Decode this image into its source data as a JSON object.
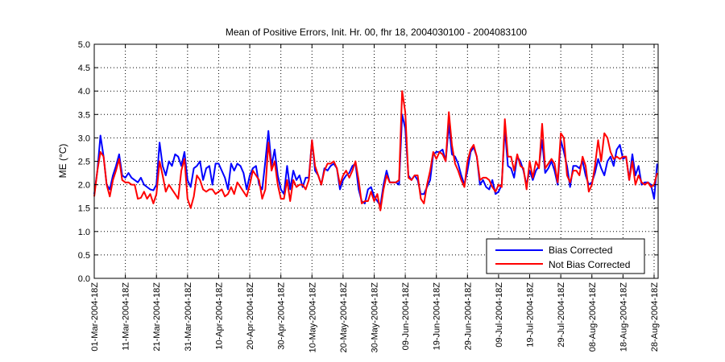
{
  "chart_data": {
    "type": "line",
    "title": "Mean of Positive Errors, Init. Hr. 00, fhr 18, 2004030100 - 2004083100",
    "xlabel": "",
    "ylabel": "ME (°C)",
    "ylim": [
      0,
      5
    ],
    "xlim_days": [
      0,
      181.3
    ],
    "yticks": [
      "0.0",
      "0.5",
      "1.0",
      "1.5",
      "2.0",
      "2.5",
      "3.0",
      "3.5",
      "4.0",
      "4.5",
      "5.0"
    ],
    "ytick_values": [
      0,
      0.5,
      1,
      1.5,
      2,
      2.5,
      3,
      3.5,
      4,
      4.5,
      5
    ],
    "xticks": [
      "01-Mar-2004-18Z",
      "11-Mar-2004-18Z",
      "21-Mar-2004-18Z",
      "31-Mar-2004-18Z",
      "10-Apr-2004-18Z",
      "20-Apr-2004-18Z",
      "30-Apr-2004-18Z",
      "10-May-2004-18Z",
      "20-May-2004-18Z",
      "30-May-2004-18Z",
      "09-Jun-2004-18Z",
      "19-Jun-2004-18Z",
      "29-Jun-2004-18Z",
      "09-Jul-2004-18Z",
      "19-Jul-2004-18Z",
      "29-Jul-2004-18Z",
      "08-Aug-2004-18Z",
      "18-Aug-2004-18Z",
      "28-Aug-2004-18Z"
    ],
    "xtick_days": [
      0,
      10,
      20,
      30,
      40,
      50,
      60,
      70,
      80,
      90,
      100,
      110,
      120,
      130,
      140,
      150,
      160,
      170,
      180
    ],
    "grid": true,
    "legend_position": "bottom-right",
    "series": [
      {
        "name": "Bias Corrected",
        "color": "#0000ff",
        "values": [
          1.8,
          2.3,
          3.05,
          2.6,
          2.0,
          1.9,
          2.2,
          2.4,
          2.65,
          2.2,
          2.15,
          2.25,
          2.15,
          2.1,
          2.05,
          2.15,
          2.0,
          1.95,
          1.9,
          1.88,
          2.0,
          2.9,
          2.4,
          2.2,
          2.5,
          2.4,
          2.65,
          2.6,
          2.4,
          2.7,
          2.1,
          1.95,
          2.35,
          2.4,
          2.5,
          2.1,
          2.35,
          2.4,
          2.0,
          2.45,
          2.45,
          2.3,
          2.15,
          1.9,
          2.45,
          2.3,
          2.45,
          2.4,
          2.25,
          1.9,
          2.2,
          2.35,
          2.4,
          2.0,
          1.9,
          2.5,
          3.15,
          2.4,
          2.75,
          2.2,
          1.9,
          1.8,
          2.4,
          1.9,
          2.3,
          2.1,
          2.2,
          1.95,
          2.15,
          2.15,
          2.95,
          2.3,
          2.2,
          2.0,
          2.35,
          2.3,
          2.4,
          2.45,
          2.35,
          1.9,
          2.1,
          2.2,
          2.25,
          2.4,
          2.45,
          1.9,
          1.65,
          1.6,
          1.9,
          1.95,
          1.75,
          1.65,
          1.55,
          2.0,
          2.3,
          2.05,
          2.05,
          2.05,
          2.0,
          3.5,
          3.2,
          2.2,
          2.1,
          2.2,
          2.1,
          1.8,
          1.8,
          1.95,
          2.1,
          2.65,
          2.7,
          2.7,
          2.75,
          2.5,
          3.3,
          2.65,
          2.6,
          2.45,
          2.2,
          2.0,
          2.3,
          2.7,
          2.8,
          2.6,
          2.0,
          2.1,
          1.95,
          1.9,
          2.1,
          1.8,
          1.85,
          2.0,
          3.2,
          2.4,
          2.35,
          2.15,
          2.6,
          2.5,
          2.3,
          2.0,
          2.3,
          2.1,
          2.3,
          2.4,
          2.95,
          2.25,
          2.35,
          2.5,
          2.3,
          2.0,
          2.95,
          2.7,
          2.4,
          1.95,
          2.4,
          2.4,
          2.35,
          2.5,
          2.2,
          2.0,
          2.05,
          2.25,
          2.55,
          2.35,
          2.2,
          2.5,
          2.6,
          2.4,
          2.75,
          2.85,
          2.55,
          2.6,
          2.1,
          2.65,
          2.2,
          2.4,
          2.0,
          2.05,
          2.05,
          2.0,
          1.7,
          2.45
        ]
      },
      {
        "name": "Not Bias Corrected",
        "color": "#ff0000",
        "values": [
          1.75,
          2.3,
          2.7,
          2.6,
          2.0,
          1.75,
          2.1,
          2.3,
          2.55,
          2.1,
          2.05,
          2.05,
          2.0,
          2.0,
          1.7,
          1.72,
          1.85,
          1.7,
          1.8,
          1.6,
          1.8,
          2.5,
          2.2,
          1.85,
          2.0,
          1.9,
          1.8,
          1.7,
          2.3,
          2.55,
          1.7,
          1.5,
          1.75,
          2.2,
          2.1,
          1.9,
          1.85,
          1.9,
          1.9,
          1.8,
          1.85,
          1.9,
          1.75,
          1.8,
          1.95,
          1.8,
          2.05,
          1.95,
          1.85,
          1.75,
          2.0,
          2.3,
          2.2,
          2.1,
          1.7,
          1.9,
          2.9,
          2.3,
          2.5,
          2.0,
          1.7,
          1.7,
          2.1,
          1.65,
          2.1,
          1.95,
          2.0,
          2.0,
          1.9,
          2.1,
          2.95,
          2.4,
          2.2,
          2.0,
          2.3,
          2.45,
          2.45,
          2.5,
          2.35,
          2.0,
          2.2,
          2.3,
          2.15,
          2.3,
          2.5,
          2.1,
          1.6,
          1.65,
          1.65,
          1.85,
          1.65,
          1.8,
          1.45,
          1.9,
          2.2,
          2.05,
          2.05,
          2.05,
          2.1,
          4.0,
          3.55,
          2.15,
          2.1,
          2.2,
          2.2,
          1.7,
          1.6,
          2.0,
          2.3,
          2.7,
          2.55,
          2.7,
          2.65,
          2.5,
          3.55,
          2.85,
          2.45,
          2.3,
          2.1,
          1.95,
          2.5,
          2.75,
          2.85,
          2.6,
          2.1,
          2.15,
          2.15,
          2.1,
          1.95,
          1.85,
          2.0,
          1.95,
          3.4,
          2.6,
          2.6,
          2.3,
          2.65,
          2.4,
          2.35,
          1.9,
          2.5,
          2.15,
          2.5,
          2.35,
          3.3,
          2.35,
          2.45,
          2.55,
          2.45,
          2.05,
          3.1,
          3.0,
          2.2,
          2.05,
          2.3,
          2.3,
          2.2,
          2.6,
          2.4,
          1.85,
          2.0,
          2.4,
          2.95,
          2.5,
          3.1,
          3.0,
          2.7,
          2.55,
          2.6,
          2.55,
          2.6,
          2.6,
          2.1,
          2.5,
          2.0,
          2.2,
          2.05,
          2.0,
          2.05,
          1.95,
          2.0,
          2.25
        ]
      }
    ]
  }
}
